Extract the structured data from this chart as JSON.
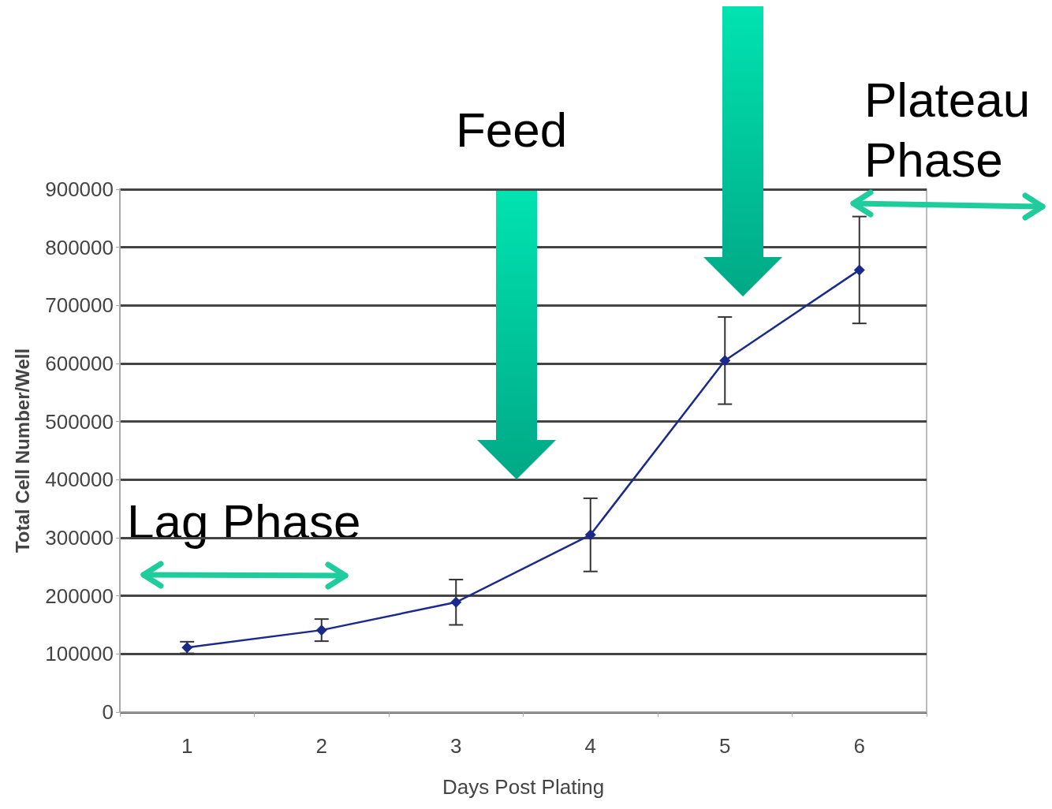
{
  "chart_data": {
    "type": "line",
    "xlabel": "Days Post Plating",
    "ylabel": "Total Cell Number/Well",
    "categories": [
      "1",
      "2",
      "3",
      "4",
      "5",
      "6"
    ],
    "values": [
      111000,
      141000,
      189000,
      305000,
      605000,
      761000
    ],
    "errors": [
      10000,
      19000,
      39000,
      63000,
      75000,
      92000
    ],
    "color": "#1a2a8c",
    "marker": "diamond",
    "line_style": "solid",
    "ylim": [
      0,
      900000
    ],
    "yticks": [
      0,
      100000,
      200000,
      300000,
      400000,
      500000,
      600000,
      700000,
      800000,
      900000
    ],
    "grid": "y",
    "annotations": [
      "Feed",
      "Lag Phase",
      "Plateau Phase"
    ]
  }
}
